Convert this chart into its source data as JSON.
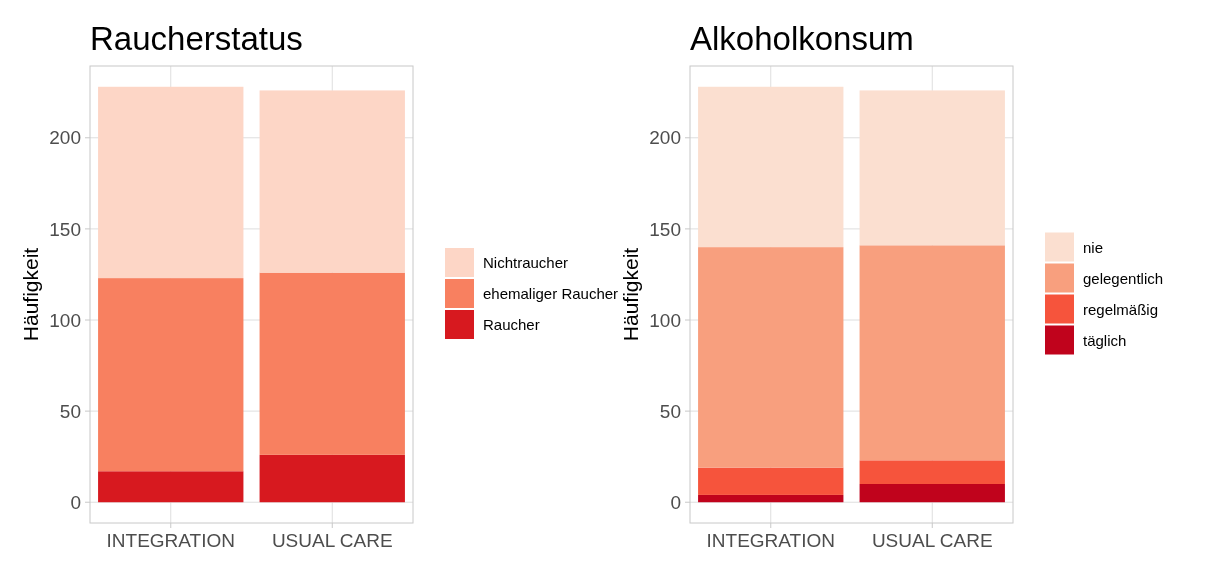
{
  "chart_data": [
    {
      "type": "bar",
      "title": "Raucherstatus",
      "ylabel": "Häufigkeit",
      "categories": [
        "INTEGRATION",
        "USUAL CARE"
      ],
      "stacked": true,
      "ylim": [
        -11.4,
        239.4
      ],
      "yticks": [
        0,
        50,
        100,
        150,
        200
      ],
      "grid": true,
      "legend": "right",
      "series": [
        {
          "name": "Raucher",
          "color": "#d7191f",
          "values": [
            17,
            26
          ]
        },
        {
          "name": "ehemaliger Raucher",
          "color": "#f88060",
          "values": [
            106,
            100
          ]
        },
        {
          "name": "Nichtraucher",
          "color": "#fdd6c6",
          "values": [
            105,
            100
          ]
        }
      ]
    },
    {
      "type": "bar",
      "title": "Alkoholkonsum",
      "ylabel": "Häufigkeit",
      "categories": [
        "INTEGRATION",
        "USUAL CARE"
      ],
      "stacked": true,
      "ylim": [
        -11.4,
        239.4
      ],
      "yticks": [
        0,
        50,
        100,
        150,
        200
      ],
      "grid": true,
      "legend": "right",
      "series": [
        {
          "name": "täglich",
          "color": "#c0031c",
          "values": [
            4,
            10
          ]
        },
        {
          "name": "regelmäßig",
          "color": "#f6543c",
          "values": [
            15,
            13
          ]
        },
        {
          "name": "gelegentlich",
          "color": "#f89f7e",
          "values": [
            121,
            118
          ]
        },
        {
          "name": "nie",
          "color": "#fbdfd0",
          "values": [
            88,
            85
          ]
        }
      ]
    }
  ]
}
